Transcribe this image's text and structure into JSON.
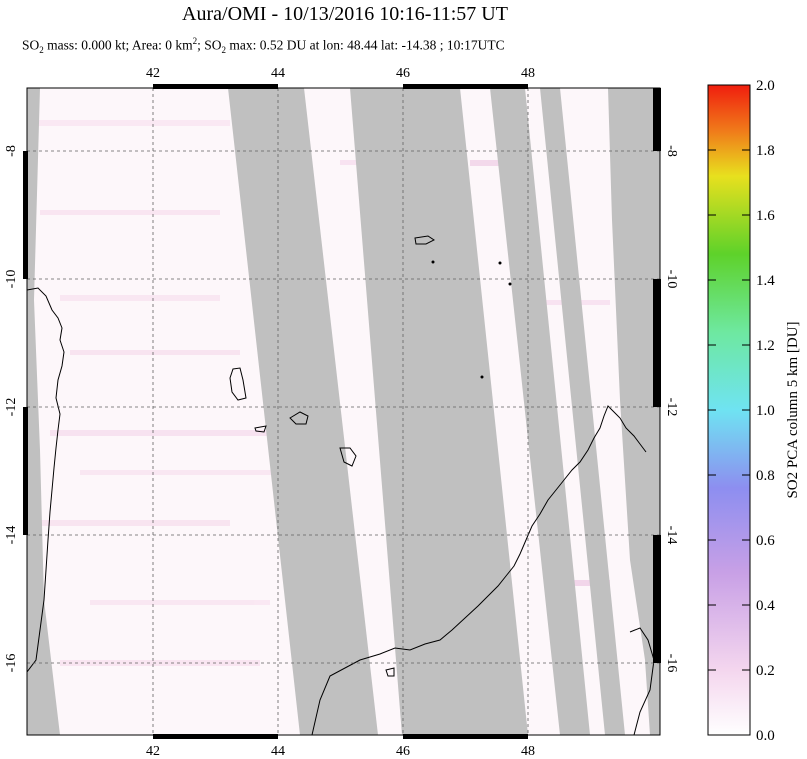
{
  "title": "Aura/OMI - 10/13/2016 10:16-11:57 UT",
  "subtitle": {
    "p1": "SO",
    "p2": " mass: 0.000 kt; Area: 0 km",
    "p3": "; SO",
    "p4": " max: 0.52 DU at lon: 48.44 lat: -14.38 ; 10:17UTC",
    "sub2": "2",
    "sup2": "2"
  },
  "map": {
    "lon_ticks": [
      "42",
      "44",
      "46",
      "48"
    ],
    "lat_ticks": [
      "-8",
      "-10",
      "-12",
      "-14",
      "-16"
    ],
    "lon_range": [
      40,
      50
    ],
    "lat_range": [
      -17,
      -7
    ],
    "colors": {
      "nodata": "#c0c0c0",
      "background": "#fdf7fa",
      "pink_light": "#f7e4f1",
      "coast": "#000000"
    }
  },
  "colorbar": {
    "label": "SO2 PCA column 5 km [DU]",
    "ticks": [
      "0.0",
      "0.2",
      "0.4",
      "0.6",
      "0.8",
      "1.0",
      "1.2",
      "1.4",
      "1.6",
      "1.8",
      "2.0"
    ],
    "range": [
      0,
      2
    ]
  }
}
